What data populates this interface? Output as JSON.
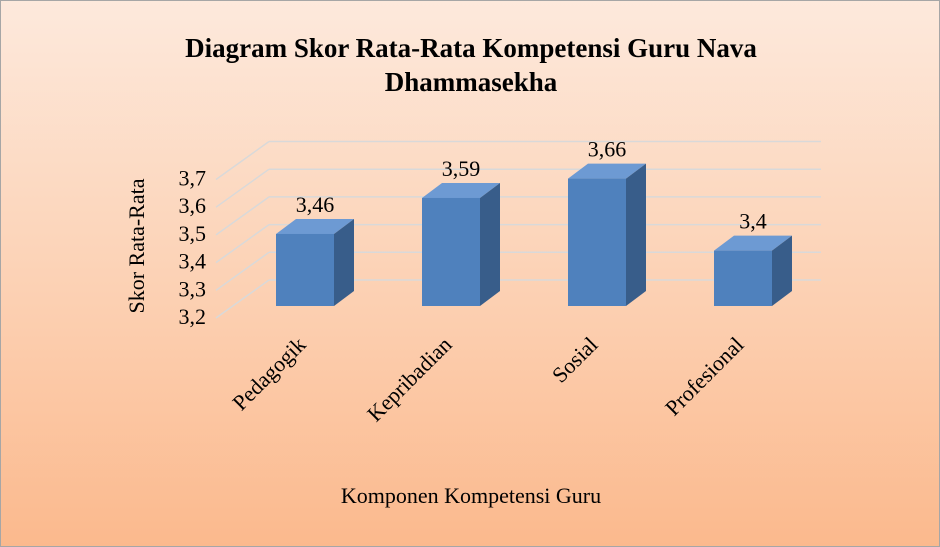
{
  "chart_data": {
    "type": "bar3d",
    "title": "Diagram Skor Rata-Rata Kompetensi Guru Nava Dhammasekha",
    "x_label": "Komponen Kompetensi Guru",
    "y_label": "Skor Rata-Rata",
    "categories": [
      "Pedagogik",
      "Kepribadian",
      "Sosial",
      "Profesional"
    ],
    "values": [
      3.46,
      3.59,
      3.66,
      3.4
    ],
    "value_labels": [
      "3,46",
      "3,59",
      "3,66",
      "3,4"
    ],
    "color": "#4f81bd",
    "ylim": [
      3.2,
      3.7
    ],
    "yticks": [
      {
        "value": 3.2,
        "label": "3,2"
      },
      {
        "value": 3.3,
        "label": "3,3"
      },
      {
        "value": 3.4,
        "label": "3,4"
      },
      {
        "value": 3.5,
        "label": "3,5"
      },
      {
        "value": 3.6,
        "label": "3,6"
      },
      {
        "value": 3.7,
        "label": "3,7"
      }
    ],
    "grid": true
  }
}
